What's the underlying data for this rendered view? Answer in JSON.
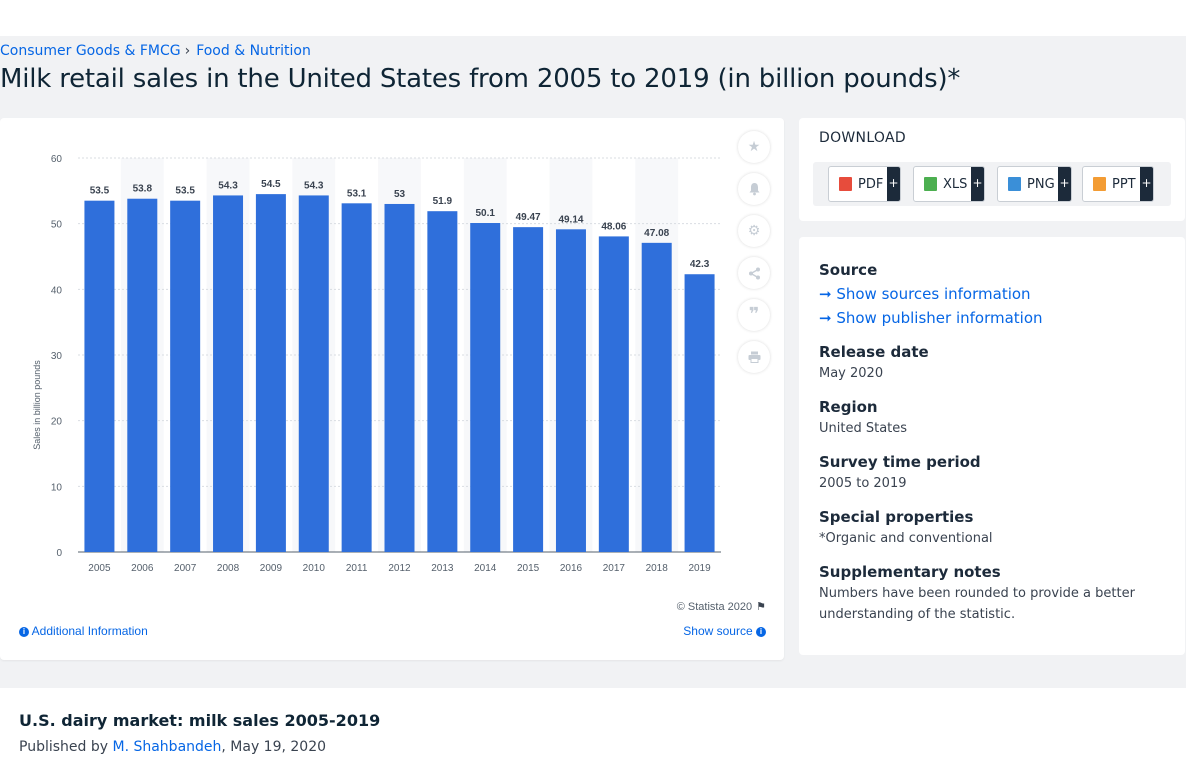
{
  "breadcrumb": {
    "item1": "Consumer Goods & FMCG",
    "separator": "›",
    "item2": "Food & Nutrition"
  },
  "page": {
    "title": "Milk retail sales in the United States from 2005 to 2019 (in billion pounds)*"
  },
  "chart_data": {
    "type": "bar",
    "categories": [
      "2005",
      "2006",
      "2007",
      "2008",
      "2009",
      "2010",
      "2011",
      "2012",
      "2013",
      "2014",
      "2015",
      "2016",
      "2017",
      "2018",
      "2019"
    ],
    "values": [
      53.5,
      53.8,
      53.5,
      54.3,
      54.5,
      54.3,
      53.1,
      53,
      51.9,
      50.1,
      49.47,
      49.14,
      48.06,
      47.08,
      42.3
    ],
    "value_labels": [
      "53.5",
      "53.8",
      "53.5",
      "54.3",
      "54.5",
      "54.3",
      "53.1",
      "53",
      "51.9",
      "50.1",
      "49.47",
      "49.14",
      "48.06",
      "47.08",
      "42.3"
    ],
    "ylabel": "Sales in billion pounds",
    "ylim": [
      0,
      60
    ],
    "yticks": [
      0,
      10,
      20,
      30,
      40,
      50,
      60
    ],
    "bar_color": "#2f6fdb",
    "grid": true
  },
  "chart_footer": {
    "copyright": "© Statista 2020",
    "additional_info": "Additional Information",
    "show_source": "Show source"
  },
  "actions": [
    "star-icon",
    "bell-icon",
    "gear-icon",
    "share-icon",
    "quote-icon",
    "print-icon"
  ],
  "download": {
    "title": "DOWNLOAD",
    "buttons": [
      {
        "label": "PDF",
        "plus": "+"
      },
      {
        "label": "XLS",
        "plus": "+"
      },
      {
        "label": "PNG",
        "plus": "+"
      },
      {
        "label": "PPT",
        "plus": "+"
      }
    ]
  },
  "meta": {
    "source_heading": "Source",
    "show_sources": "Show sources information",
    "show_publisher": "Show publisher information",
    "release_heading": "Release date",
    "release_value": "May 2020",
    "region_heading": "Region",
    "region_value": "United States",
    "survey_heading": "Survey time period",
    "survey_value": "2005 to 2019",
    "special_heading": "Special properties",
    "special_value": "*Organic and conventional",
    "supp_heading": "Supplementary notes",
    "supp_value": "Numbers have been rounded to provide a better understanding of the statistic."
  },
  "article": {
    "title": "U.S. dairy market: milk sales 2005-2019",
    "published_by": "Published by",
    "author": "M. Shahbandeh",
    "date": ", May 19, 2020"
  }
}
